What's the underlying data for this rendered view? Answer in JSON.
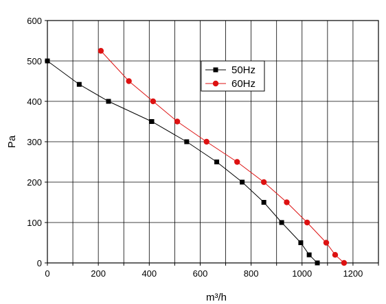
{
  "chart_data": {
    "type": "line",
    "title": "",
    "xlabel": "m³/h",
    "ylabel": "Pa",
    "xlim": [
      0,
      1300
    ],
    "ylim": [
      0,
      600
    ],
    "xticks": [
      0,
      200,
      400,
      600,
      800,
      1000,
      1200
    ],
    "yticks": [
      0,
      100,
      200,
      300,
      400,
      500,
      600
    ],
    "grid": true,
    "legend": "upper-right-center",
    "series": [
      {
        "name": "50Hz",
        "color": "#000000",
        "marker": "square",
        "points": [
          [
            0,
            500
          ],
          [
            125,
            442
          ],
          [
            240,
            400
          ],
          [
            410,
            350
          ],
          [
            547,
            300
          ],
          [
            665,
            250
          ],
          [
            765,
            200
          ],
          [
            850,
            150
          ],
          [
            920,
            100
          ],
          [
            995,
            50
          ],
          [
            1028,
            20
          ],
          [
            1060,
            0
          ]
        ]
      },
      {
        "name": "60Hz",
        "color": "#dd1111",
        "marker": "circle",
        "points": [
          [
            210,
            525
          ],
          [
            320,
            450
          ],
          [
            415,
            400
          ],
          [
            510,
            350
          ],
          [
            625,
            300
          ],
          [
            745,
            250
          ],
          [
            850,
            200
          ],
          [
            940,
            150
          ],
          [
            1020,
            100
          ],
          [
            1095,
            50
          ],
          [
            1130,
            20
          ],
          [
            1165,
            0
          ]
        ]
      }
    ]
  }
}
